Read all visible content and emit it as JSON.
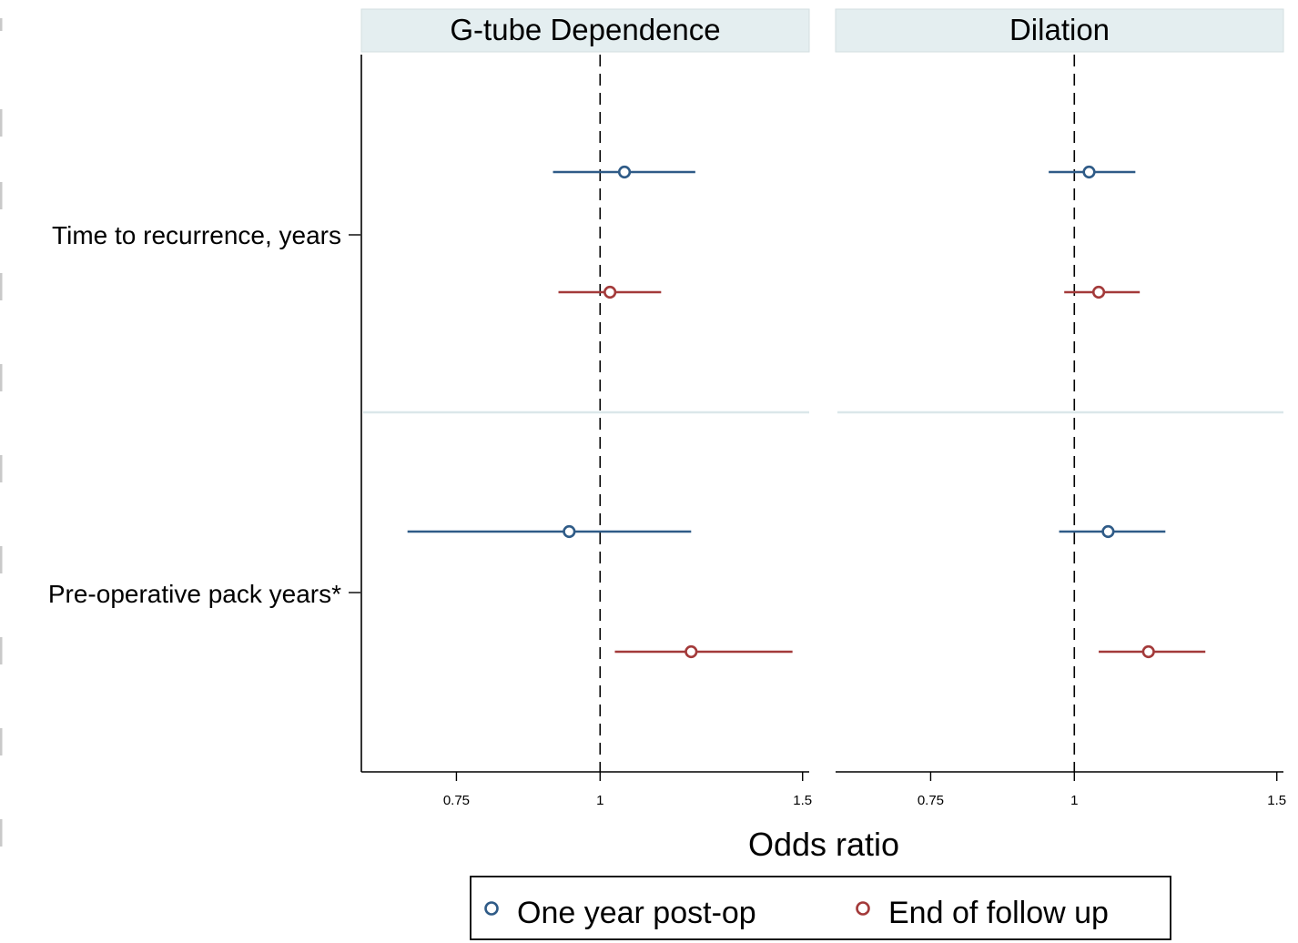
{
  "chart_data": {
    "type": "forest",
    "xlabel": "Odds ratio",
    "x_scale": "log",
    "xlim": [
      0.62,
      1.52
    ],
    "x_ticks": [
      {
        "value": 0.75,
        "label": "0.75"
      },
      {
        "value": 1,
        "label": "1"
      },
      {
        "value": 1.5,
        "label": "1.5"
      }
    ],
    "reference_line": 1,
    "rows": [
      "Time to recurrence, years",
      "Pre-operative pack years*"
    ],
    "panels": [
      {
        "title": "G-tube Dependence",
        "estimates": [
          {
            "row": 0,
            "series": 0,
            "or": 1.05,
            "lo": 0.91,
            "hi": 1.21
          },
          {
            "row": 0,
            "series": 1,
            "or": 1.02,
            "lo": 0.92,
            "hi": 1.13
          },
          {
            "row": 1,
            "series": 0,
            "or": 0.94,
            "lo": 0.68,
            "hi": 1.2
          },
          {
            "row": 1,
            "series": 1,
            "or": 1.2,
            "lo": 1.03,
            "hi": 1.47
          }
        ]
      },
      {
        "title": "Dilation",
        "estimates": [
          {
            "row": 0,
            "series": 0,
            "or": 1.03,
            "lo": 0.95,
            "hi": 1.13
          },
          {
            "row": 0,
            "series": 1,
            "or": 1.05,
            "lo": 0.98,
            "hi": 1.14
          },
          {
            "row": 1,
            "series": 0,
            "or": 1.07,
            "lo": 0.97,
            "hi": 1.2
          },
          {
            "row": 1,
            "series": 1,
            "or": 1.16,
            "lo": 1.05,
            "hi": 1.3
          }
        ]
      }
    ],
    "series": [
      {
        "name": "One year post-op",
        "color": "#2f5b87"
      },
      {
        "name": "End of follow up",
        "color": "#a33a3a"
      }
    ],
    "legend_position": "bottom-center",
    "grid": false
  }
}
